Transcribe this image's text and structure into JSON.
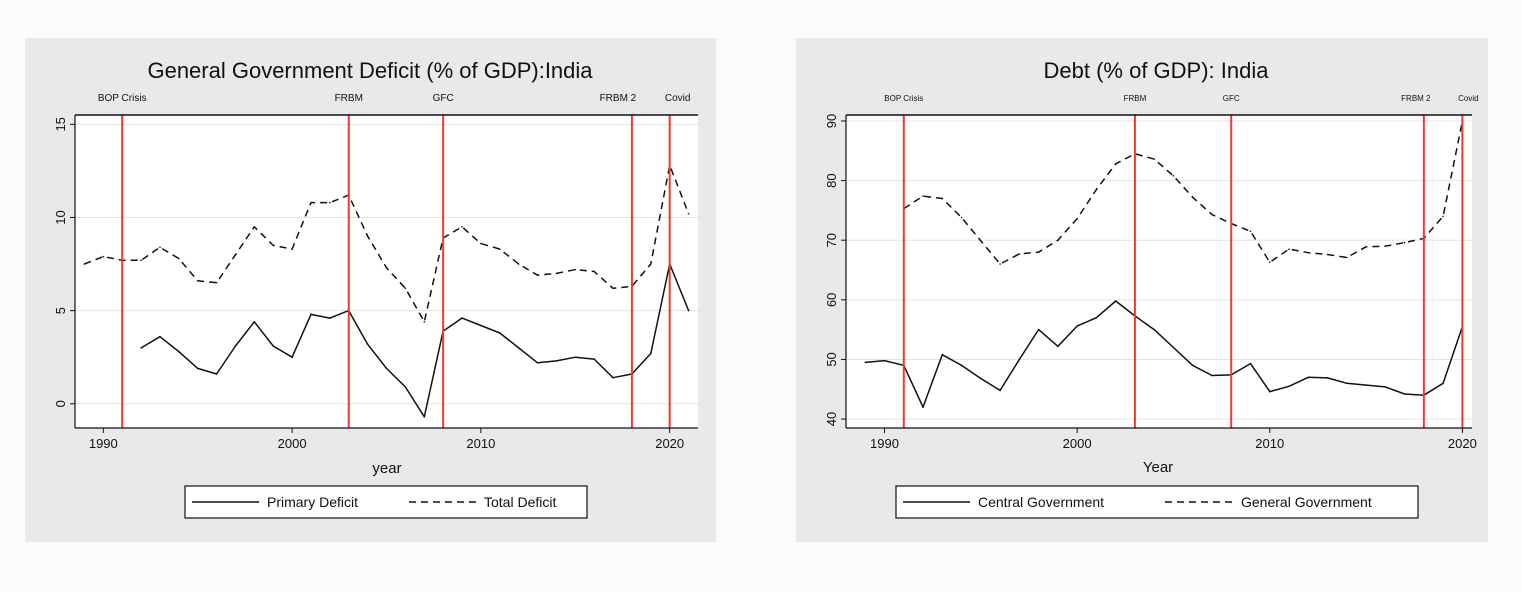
{
  "chart_data": [
    {
      "type": "line",
      "title": "General Government Deficit (% of GDP):India",
      "xlabel": "year",
      "ylabel": "",
      "xlim": [
        1988.5,
        2021.5
      ],
      "ylim": [
        -1.3,
        15.5
      ],
      "xticks": [
        1990,
        2000,
        2010,
        2020
      ],
      "yticks": [
        0,
        5,
        10,
        15
      ],
      "grid": true,
      "legend_position": "bottom",
      "events": [
        {
          "x": 1991,
          "label": "BOP Crisis"
        },
        {
          "x": 2003,
          "label": "FRBM"
        },
        {
          "x": 2008,
          "label": "GFC"
        },
        {
          "x": 2018,
          "label": "FRBM 2"
        },
        {
          "x": 2020,
          "label": "Covid"
        }
      ],
      "series": [
        {
          "name": "Primary Deficit",
          "dash": "solid",
          "x": [
            1992,
            1993,
            1994,
            1995,
            1996,
            1997,
            1998,
            1999,
            2000,
            2001,
            2002,
            2003,
            2004,
            2005,
            2006,
            2007,
            2008,
            2009,
            2010,
            2011,
            2012,
            2013,
            2014,
            2015,
            2016,
            2017,
            2018,
            2019,
            2020,
            2021
          ],
          "y": [
            3.0,
            3.6,
            2.8,
            1.9,
            1.6,
            3.1,
            4.4,
            3.1,
            2.5,
            4.8,
            4.6,
            5.0,
            3.2,
            1.9,
            0.9,
            -0.7,
            3.9,
            4.6,
            4.2,
            3.8,
            3.0,
            2.2,
            2.3,
            2.5,
            2.4,
            1.4,
            1.6,
            2.7,
            7.5,
            5.0
          ]
        },
        {
          "name": "Total Deficit",
          "dash": "dashed",
          "x": [
            1989,
            1990,
            1991,
            1992,
            1993,
            1994,
            1995,
            1996,
            1997,
            1998,
            1999,
            2000,
            2001,
            2002,
            2003,
            2004,
            2005,
            2006,
            2007,
            2008,
            2009,
            2010,
            2011,
            2012,
            2013,
            2014,
            2015,
            2016,
            2017,
            2018,
            2019,
            2020,
            2021
          ],
          "y": [
            7.5,
            7.9,
            7.7,
            7.7,
            8.4,
            7.8,
            6.6,
            6.5,
            8.0,
            9.5,
            8.5,
            8.3,
            10.8,
            10.8,
            11.2,
            9.0,
            7.3,
            6.2,
            4.4,
            8.9,
            9.5,
            8.6,
            8.3,
            7.5,
            6.9,
            7.0,
            7.2,
            7.1,
            6.2,
            6.3,
            7.5,
            12.8,
            10.2
          ]
        }
      ]
    },
    {
      "type": "line",
      "title": "Debt (% of GDP): India",
      "xlabel": "Year",
      "ylabel": "",
      "xlim": [
        1988,
        2020.5
      ],
      "ylim": [
        38.5,
        91
      ],
      "xticks": [
        1990,
        2000,
        2010,
        2020
      ],
      "yticks": [
        40,
        50,
        60,
        70,
        80,
        90
      ],
      "grid": true,
      "legend_position": "bottom",
      "events": [
        {
          "x": 1991,
          "label": "BOP Crisis"
        },
        {
          "x": 2003,
          "label": "FRBM"
        },
        {
          "x": 2008,
          "label": "GFC"
        },
        {
          "x": 2018,
          "label": "FRBM 2"
        },
        {
          "x": 2020,
          "label": "Covid"
        }
      ],
      "series": [
        {
          "name": "Central Government",
          "dash": "solid",
          "x": [
            1989,
            1990,
            1991,
            1992,
            1993,
            1994,
            1995,
            1996,
            1997,
            1998,
            1999,
            2000,
            2001,
            2002,
            2003,
            2004,
            2005,
            2006,
            2007,
            2008,
            2009,
            2010,
            2011,
            2012,
            2013,
            2014,
            2015,
            2016,
            2017,
            2018,
            2019,
            2020
          ],
          "y": [
            49.5,
            49.8,
            49.0,
            42.0,
            50.8,
            49.0,
            46.8,
            44.8,
            50.0,
            55.0,
            52.2,
            55.6,
            57.0,
            59.8,
            57.3,
            55.0,
            52.0,
            49.0,
            47.3,
            47.4,
            49.3,
            44.6,
            45.5,
            47.0,
            46.9,
            46.0,
            45.7,
            45.4,
            44.2,
            44.0,
            46.0,
            55.5
          ]
        },
        {
          "name": "General Government",
          "dash": "dashed",
          "x": [
            1991,
            1992,
            1993,
            1994,
            1995,
            1996,
            1997,
            1998,
            1999,
            2000,
            2001,
            2002,
            2003,
            2004,
            2005,
            2006,
            2007,
            2008,
            2009,
            2010,
            2011,
            2012,
            2013,
            2014,
            2015,
            2016,
            2017,
            2018,
            2019,
            2020
          ],
          "y": [
            75.3,
            77.4,
            77.0,
            73.8,
            69.9,
            66.0,
            67.7,
            68.0,
            70.0,
            73.6,
            78.5,
            82.8,
            84.5,
            83.6,
            80.8,
            77.2,
            74.3,
            72.8,
            71.5,
            66.3,
            68.5,
            67.9,
            67.6,
            67.1,
            68.9,
            69.0,
            69.6,
            70.3,
            74.0,
            90.0
          ]
        }
      ]
    }
  ]
}
